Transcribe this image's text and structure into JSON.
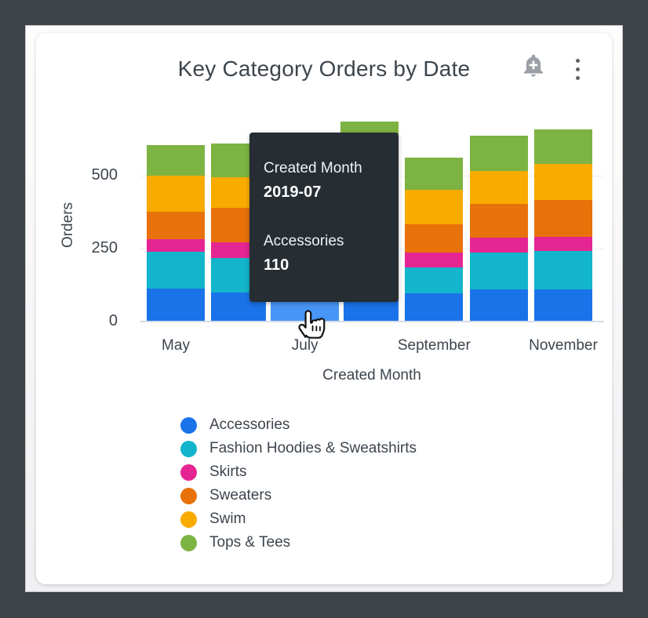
{
  "header": {
    "title": "Key Category Orders by Date",
    "alert_icon": "add-alert-bell",
    "menu_icon": "kebab-menu"
  },
  "colors": {
    "frame": "#3D4347",
    "card_bg": "#FFFFFF",
    "tooltip_bg": "#262D33",
    "hover_highlight": "#4795F6",
    "text": "#3D454D"
  },
  "tooltip": {
    "rows": [
      {
        "label": "Created Month",
        "value": "2019-07"
      },
      {
        "label": "Accessories",
        "value": "110"
      }
    ]
  },
  "chart_data": {
    "type": "bar",
    "stacked": true,
    "title": "Key Category Orders by Date",
    "xlabel": "Created Month",
    "ylabel": "Orders",
    "x": [
      "2019-05",
      "2019-06",
      "2019-07",
      "2019-08",
      "2019-09",
      "2019-10",
      "2019-11"
    ],
    "x_tick_labels": [
      "May",
      "July",
      "September",
      "November"
    ],
    "x_tick_every": 2,
    "y_ticks": [
      0,
      250,
      500
    ],
    "ylim": [
      0,
      700
    ],
    "grid": true,
    "legend_position": "bottom-left",
    "series": [
      {
        "name": "Accessories",
        "color": "#1A73E8",
        "values": [
          112,
          99,
          110,
          105,
          95,
          110,
          110
        ]
      },
      {
        "name": "Fashion Hoodies & Sweatshirts",
        "color": "#12B5CB",
        "values": [
          125,
          117,
          115,
          120,
          90,
          125,
          130
        ]
      },
      {
        "name": "Skirts",
        "color": "#E52592",
        "values": [
          43,
          53,
          50,
          55,
          51,
          51,
          49
        ]
      },
      {
        "name": "Sweaters",
        "color": "#E8710A",
        "values": [
          95,
          119,
          115,
          125,
          97,
          116,
          126
        ]
      },
      {
        "name": "Swim",
        "color": "#F9AB00",
        "values": [
          124,
          105,
          115,
          138,
          118,
          112,
          124
        ]
      },
      {
        "name": "Tops & Tees",
        "color": "#7CB342",
        "values": [
          105,
          115,
          110,
          140,
          110,
          121,
          118
        ]
      }
    ],
    "hover": {
      "bar_index": 2,
      "series": "Accessories",
      "highlight_color": "#4795F6",
      "tooltip_month": "2019-07",
      "tooltip_value": 110
    }
  }
}
